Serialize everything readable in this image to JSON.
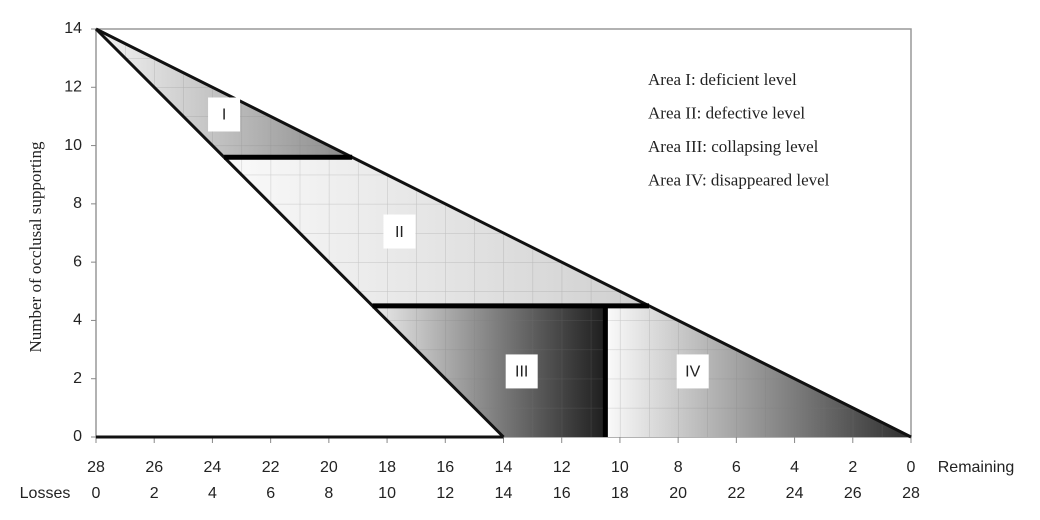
{
  "chart_data": {
    "type": "area-diagram",
    "ylabel": "Number of occlusal supporting",
    "xlabel": "Remaining",
    "x2label": "Losses",
    "xlim": [
      28,
      0
    ],
    "xticks": [
      28,
      26,
      24,
      22,
      20,
      18,
      16,
      14,
      12,
      10,
      8,
      6,
      4,
      2,
      0
    ],
    "x2lim": [
      0,
      28
    ],
    "x2ticks": [
      0,
      2,
      4,
      6,
      8,
      10,
      12,
      14,
      16,
      18,
      20,
      22,
      24,
      26,
      28
    ],
    "ylim": [
      0,
      14
    ],
    "yticks": [
      0,
      2,
      4,
      6,
      8,
      10,
      12,
      14
    ],
    "lines": [
      {
        "x": [
          28,
          0
        ],
        "y": [
          14,
          0
        ]
      },
      {
        "x": [
          28,
          14
        ],
        "y": [
          14,
          0
        ]
      },
      {
        "x": [
          28,
          14
        ],
        "y": [
          0,
          0
        ]
      }
    ],
    "horizontal_dividers": [
      9.6,
      4.5
    ],
    "vertical_divider": 10.5,
    "regions": [
      {
        "label": "I",
        "color_from": "#f4f4f4",
        "color_to": "#8a8a8a"
      },
      {
        "label": "II",
        "color_from": "#fafafa",
        "color_to": "#cfcfcf"
      },
      {
        "label": "III",
        "color_from": "#ececec",
        "color_to": "#1e1e1e"
      },
      {
        "label": "IV",
        "color_from": "#fbfbfb",
        "color_to": "#2e2e2e"
      }
    ],
    "legend": [
      "Area I:  deficient level",
      "Area II: defective level",
      "Area III: collapsing level",
      "Area IV: disappeared level"
    ]
  }
}
